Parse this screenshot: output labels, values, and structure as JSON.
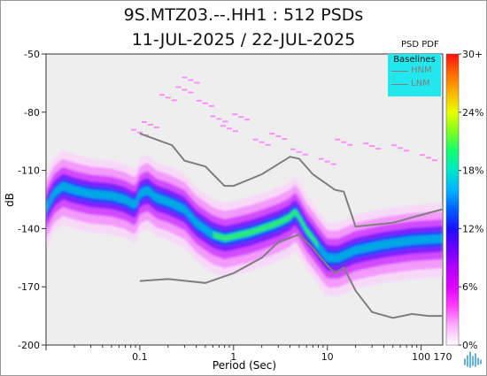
{
  "title_line1": "9S.MTZ03.--.HH1 : 512 PSDs",
  "title_line2": "11-JUL-2025 / 22-JUL-2025",
  "colorbar": {
    "title": "PSD PDF",
    "tick_labels": [
      "30+",
      "24%",
      "18%",
      "12%",
      "6%",
      "0%"
    ],
    "colors": [
      "#ff1010",
      "#ff6a00",
      "#ffb400",
      "#e8ff00",
      "#7dff20",
      "#12ff6e",
      "#00e6c8",
      "#00b4ff",
      "#0060ff",
      "#1a10ff",
      "#6a00ff",
      "#b000ff",
      "#e000ff",
      "#ff40ff",
      "#ffb0ff",
      "#ffffff"
    ]
  },
  "legend": {
    "title": "Baselines",
    "items": [
      {
        "label": "HNM",
        "color": "#7f7f7f"
      },
      {
        "label": "LNM",
        "color": "#7f7f7f"
      }
    ]
  },
  "chart_data": {
    "type": "heatmap",
    "xlabel": "Period (Sec)",
    "ylabel": "dB",
    "xscale": "log",
    "xlim": [
      0.01,
      170
    ],
    "ylim": [
      -200,
      -50
    ],
    "x_tick_labels": [
      "0.1",
      "1",
      "10",
      "100",
      "170"
    ],
    "x_ticks": [
      0.1,
      1,
      10,
      100,
      170
    ],
    "y_ticks": [
      -50,
      -80,
      -110,
      -140,
      -170,
      -200
    ],
    "background": "#eeeeee",
    "psd_mode": [
      [
        0.01,
        -130
      ],
      [
        0.012,
        -122
      ],
      [
        0.015,
        -118
      ],
      [
        0.02,
        -120
      ],
      [
        0.03,
        -122
      ],
      [
        0.05,
        -123
      ],
      [
        0.07,
        -125
      ],
      [
        0.09,
        -128
      ],
      [
        0.1,
        -122
      ],
      [
        0.12,
        -120
      ],
      [
        0.15,
        -124
      ],
      [
        0.2,
        -126
      ],
      [
        0.3,
        -130
      ],
      [
        0.4,
        -137
      ],
      [
        0.6,
        -143
      ],
      [
        0.8,
        -145
      ],
      [
        1.0,
        -144
      ],
      [
        1.5,
        -142
      ],
      [
        2.0,
        -140
      ],
      [
        3.0,
        -137
      ],
      [
        4.0,
        -134
      ],
      [
        4.5,
        -131
      ],
      [
        5.0,
        -134
      ],
      [
        6.0,
        -141
      ],
      [
        7.0,
        -145
      ],
      [
        8.0,
        -149
      ],
      [
        10.0,
        -155
      ],
      [
        13.0,
        -155
      ],
      [
        20.0,
        -151
      ],
      [
        40.0,
        -148
      ],
      [
        80.0,
        -146
      ],
      [
        170.0,
        -145
      ]
    ],
    "band_halfwidth_db": 7,
    "scattered_high_points": [
      [
        0.1,
        -90
      ],
      [
        0.13,
        -86
      ],
      [
        0.2,
        -72
      ],
      [
        0.3,
        -68
      ],
      [
        0.35,
        -63
      ],
      [
        0.5,
        -75
      ],
      [
        0.7,
        -83
      ],
      [
        0.9,
        -88
      ],
      [
        1.2,
        -82
      ],
      [
        2.0,
        -95
      ],
      [
        3.0,
        -92
      ],
      [
        5.0,
        -100
      ],
      [
        10.0,
        -105
      ],
      [
        15.0,
        -95
      ],
      [
        30.0,
        -97
      ],
      [
        60.0,
        -98
      ],
      [
        120.0,
        -103
      ]
    ],
    "nhnm": [
      [
        0.1,
        -91
      ],
      [
        0.22,
        -97
      ],
      [
        0.3,
        -105
      ],
      [
        0.5,
        -108
      ],
      [
        0.8,
        -118
      ],
      [
        1.0,
        -118
      ],
      [
        2.0,
        -112
      ],
      [
        4.0,
        -103
      ],
      [
        5.0,
        -104
      ],
      [
        7.0,
        -112
      ],
      [
        12.0,
        -120
      ],
      [
        15.0,
        -121
      ],
      [
        20.0,
        -139
      ],
      [
        50.0,
        -137
      ],
      [
        100.0,
        -133
      ],
      [
        170.0,
        -130
      ]
    ],
    "nlnm": [
      [
        0.1,
        -167
      ],
      [
        0.2,
        -166
      ],
      [
        0.5,
        -168
      ],
      [
        1.0,
        -163
      ],
      [
        2.0,
        -155
      ],
      [
        3.0,
        -147
      ],
      [
        5.0,
        -143
      ],
      [
        7.0,
        -150
      ],
      [
        10.0,
        -159
      ],
      [
        12.0,
        -163
      ],
      [
        15.0,
        -160
      ],
      [
        20.0,
        -172
      ],
      [
        30.0,
        -183
      ],
      [
        50.0,
        -186
      ],
      [
        80.0,
        -184
      ],
      [
        120.0,
        -185
      ],
      [
        170.0,
        -185
      ]
    ]
  }
}
